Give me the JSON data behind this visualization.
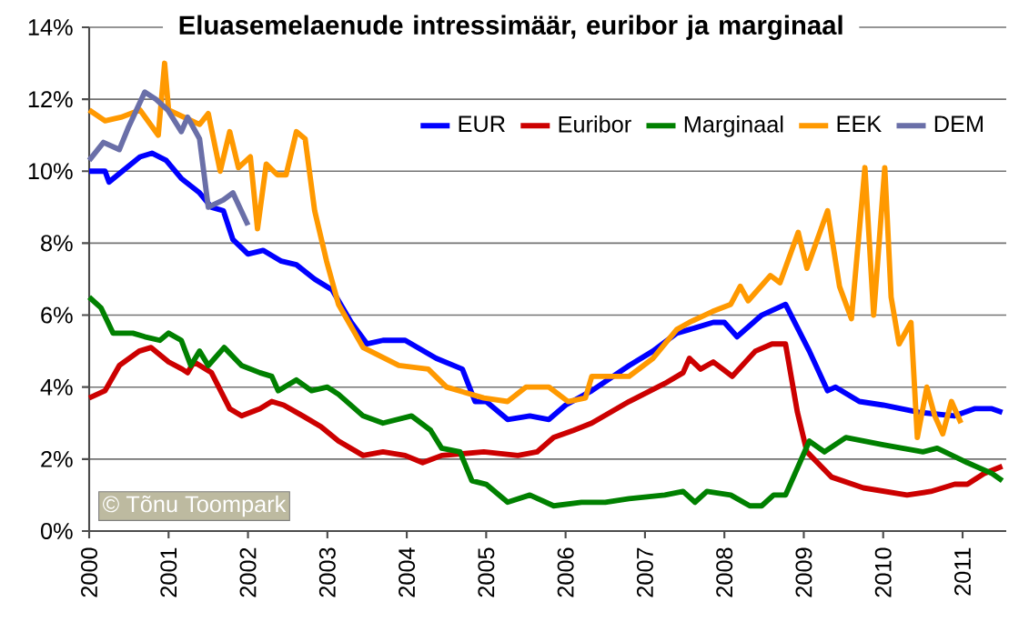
{
  "chart_data": {
    "type": "line",
    "title": "Eluasemelaenude intressimäär, euribor ja marginaal",
    "annotations": [
      "© Tõnu Toompark"
    ],
    "xlim": [
      2000,
      2011.55
    ],
    "xticks": [
      2000,
      2001,
      2002,
      2003,
      2004,
      2005,
      2006,
      2007,
      2008,
      2009,
      2010,
      2011
    ],
    "ylim": [
      0,
      14
    ],
    "yticks": [
      {
        "value": 0,
        "label": "0%"
      },
      {
        "value": 2,
        "label": "2%"
      },
      {
        "value": 4,
        "label": "4%"
      },
      {
        "value": 6,
        "label": "6%"
      },
      {
        "value": 8,
        "label": "8%"
      },
      {
        "value": 10,
        "label": "10%"
      },
      {
        "value": 12,
        "label": "12%"
      },
      {
        "value": 14,
        "label": "14%"
      }
    ],
    "grid": "y",
    "legend": "top right",
    "marker": "none",
    "line_style": "solid",
    "series": [
      {
        "name": "EUR",
        "color": "#0000ff",
        "x": [
          2000,
          2000.2,
          2000.25,
          2000.64,
          2000.79,
          2000.97,
          2001.16,
          2001.39,
          2001.54,
          2001.69,
          2001.81,
          2002.0,
          2002.19,
          2002.42,
          2002.61,
          2002.84,
          2003.06,
          2003.3,
          2003.5,
          2003.7,
          2003.98,
          2004.37,
          2004.7,
          2004.86,
          2005.0,
          2005.27,
          2005.55,
          2005.79,
          2006.0,
          2006.33,
          2006.8,
          2007.1,
          2007.4,
          2007.56,
          2007.86,
          2008.0,
          2008.16,
          2008.47,
          2008.77,
          2009.07,
          2009.3,
          2009.4,
          2009.7,
          2010.0,
          2010.45,
          2010.9,
          2011.15,
          2011.37,
          2011.5
        ],
        "values": [
          10.0,
          10.0,
          9.7,
          10.4,
          10.5,
          10.3,
          9.8,
          9.4,
          9.0,
          8.9,
          8.1,
          7.7,
          7.8,
          7.5,
          7.4,
          7.0,
          6.7,
          5.8,
          5.2,
          5.3,
          5.3,
          4.8,
          4.5,
          3.6,
          3.6,
          3.1,
          3.2,
          3.1,
          3.5,
          3.9,
          4.6,
          5.0,
          5.5,
          5.6,
          5.8,
          5.8,
          5.4,
          6.0,
          6.3,
          5.0,
          3.9,
          4.0,
          3.6,
          3.5,
          3.3,
          3.2,
          3.4,
          3.4,
          3.3
        ]
      },
      {
        "name": "Euribor",
        "color": "#cc0000",
        "x": [
          2000,
          2000.2,
          2000.38,
          2000.63,
          2000.78,
          2001.0,
          2001.17,
          2001.24,
          2001.32,
          2001.54,
          2001.77,
          2001.92,
          2002.15,
          2002.3,
          2002.45,
          2002.69,
          2002.92,
          2003.14,
          2003.45,
          2003.7,
          2003.98,
          2004.2,
          2004.44,
          2004.97,
          2005.4,
          2005.64,
          2005.85,
          2006.1,
          2006.33,
          2006.8,
          2007.25,
          2007.48,
          2007.56,
          2007.7,
          2007.86,
          2008.1,
          2008.39,
          2008.6,
          2008.77,
          2008.92,
          2009.04,
          2009.35,
          2009.75,
          2010.3,
          2010.6,
          2010.9,
          2011.06,
          2011.27,
          2011.5
        ],
        "values": [
          3.7,
          3.9,
          4.6,
          5.0,
          5.1,
          4.7,
          4.5,
          4.4,
          4.7,
          4.4,
          3.4,
          3.2,
          3.4,
          3.6,
          3.5,
          3.2,
          2.9,
          2.5,
          2.1,
          2.2,
          2.1,
          1.9,
          2.1,
          2.2,
          2.1,
          2.2,
          2.6,
          2.8,
          3.0,
          3.6,
          4.1,
          4.4,
          4.8,
          4.5,
          4.7,
          4.3,
          5.0,
          5.2,
          5.2,
          3.3,
          2.2,
          1.5,
          1.2,
          1.0,
          1.1,
          1.3,
          1.3,
          1.6,
          1.8
        ]
      },
      {
        "name": "Marginaal",
        "color": "#008000",
        "x": [
          2000,
          2000.15,
          2000.3,
          2000.55,
          2000.7,
          2000.89,
          2001.0,
          2001.16,
          2001.28,
          2001.39,
          2001.5,
          2001.7,
          2001.92,
          2002.15,
          2002.3,
          2002.38,
          2002.61,
          2002.8,
          2003.0,
          2003.14,
          2003.45,
          2003.7,
          2004.06,
          2004.3,
          2004.44,
          2004.67,
          2004.82,
          2005.0,
          2005.27,
          2005.55,
          2005.85,
          2006.2,
          2006.5,
          2006.8,
          2007.25,
          2007.48,
          2007.63,
          2007.78,
          2008.08,
          2008.32,
          2008.47,
          2008.62,
          2008.77,
          2009.07,
          2009.26,
          2009.53,
          2010.0,
          2010.5,
          2010.68,
          2011.06,
          2011.37,
          2011.5
        ],
        "values": [
          6.5,
          6.2,
          5.5,
          5.5,
          5.4,
          5.3,
          5.5,
          5.3,
          4.6,
          5.0,
          4.6,
          5.1,
          4.6,
          4.4,
          4.3,
          3.9,
          4.2,
          3.9,
          4.0,
          3.8,
          3.2,
          3.0,
          3.2,
          2.8,
          2.3,
          2.2,
          1.4,
          1.3,
          0.8,
          1.0,
          0.7,
          0.8,
          0.8,
          0.9,
          1.0,
          1.1,
          0.8,
          1.1,
          1.0,
          0.7,
          0.7,
          1.0,
          1.0,
          2.5,
          2.2,
          2.6,
          2.4,
          2.2,
          2.3,
          1.9,
          1.6,
          1.4
        ]
      },
      {
        "name": "EEK",
        "color": "#ff9900",
        "x": [
          2000,
          2000.2,
          2000.4,
          2000.64,
          2000.87,
          2000.95,
          2001.0,
          2001.39,
          2001.5,
          2001.65,
          2001.77,
          2001.88,
          2002.03,
          2002.12,
          2002.23,
          2002.37,
          2002.48,
          2002.61,
          2002.72,
          2002.84,
          2002.99,
          2003.14,
          2003.45,
          2003.9,
          2004.27,
          2004.5,
          2004.97,
          2005.27,
          2005.5,
          2005.79,
          2006.03,
          2006.25,
          2006.33,
          2006.8,
          2007.1,
          2007.4,
          2007.56,
          2007.85,
          2008.08,
          2008.2,
          2008.3,
          2008.58,
          2008.7,
          2008.93,
          2009.04,
          2009.3,
          2009.45,
          2009.6,
          2009.77,
          2009.88,
          2010.02,
          2010.1,
          2010.2,
          2010.35,
          2010.43,
          2010.55,
          2010.65,
          2010.75,
          2010.86,
          2010.98
        ],
        "values": [
          11.7,
          11.4,
          11.5,
          11.7,
          11.0,
          13.0,
          11.7,
          11.3,
          11.6,
          10.0,
          11.1,
          10.1,
          10.4,
          8.4,
          10.2,
          9.9,
          9.9,
          11.1,
          10.9,
          8.9,
          7.5,
          6.3,
          5.1,
          4.6,
          4.5,
          4.0,
          3.7,
          3.6,
          4.0,
          4.0,
          3.6,
          3.7,
          4.3,
          4.3,
          4.8,
          5.6,
          5.8,
          6.1,
          6.3,
          6.8,
          6.4,
          7.1,
          6.9,
          8.3,
          7.3,
          8.9,
          6.8,
          5.9,
          10.1,
          6.0,
          10.1,
          6.5,
          5.2,
          5.8,
          2.6,
          4.0,
          3.2,
          2.7,
          3.6,
          3.0
        ]
      },
      {
        "name": "DEM",
        "color": "#6a6fa8",
        "x": [
          2000,
          2000.18,
          2000.38,
          2000.49,
          2000.7,
          2000.84,
          2000.99,
          2001.16,
          2001.24,
          2001.39,
          2001.5,
          2001.69,
          2001.81,
          2002.0
        ],
        "values": [
          10.3,
          10.8,
          10.6,
          11.2,
          12.2,
          12.0,
          11.7,
          11.1,
          11.5,
          10.9,
          9.0,
          9.2,
          9.4,
          8.5
        ]
      }
    ]
  }
}
